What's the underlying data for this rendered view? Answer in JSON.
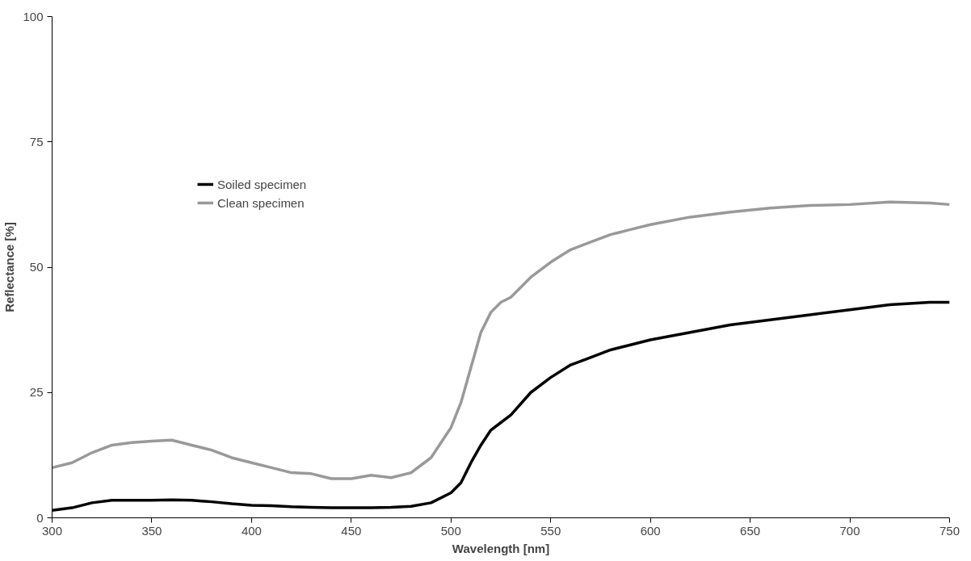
{
  "chart_data": {
    "type": "line",
    "xlabel": "Wavelength [nm]",
    "ylabel": "Reflectance [%]",
    "x": [
      300,
      310,
      320,
      330,
      340,
      350,
      360,
      370,
      380,
      390,
      400,
      410,
      420,
      430,
      440,
      450,
      460,
      470,
      480,
      490,
      500,
      505,
      510,
      515,
      520,
      525,
      530,
      540,
      550,
      560,
      570,
      580,
      590,
      600,
      620,
      640,
      660,
      680,
      700,
      720,
      740,
      750
    ],
    "series": [
      {
        "name": "Soiled specimen",
        "color": "#000000",
        "values": [
          1.5,
          2,
          3,
          3.5,
          3.5,
          3.5,
          3.6,
          3.5,
          3.2,
          2.8,
          2.5,
          2.4,
          2.2,
          2.1,
          2,
          2,
          2,
          2.1,
          2.3,
          3,
          5,
          7,
          11,
          14.5,
          17.5,
          19,
          20.5,
          25,
          28,
          30.5,
          32,
          33.5,
          34.5,
          35.5,
          37,
          38.5,
          39.5,
          40.5,
          41.5,
          42.5,
          43,
          43
        ]
      },
      {
        "name": "Clean specimen",
        "color": "#999999",
        "values": [
          10,
          11,
          13,
          14.5,
          15,
          15.3,
          15.5,
          14.5,
          13.5,
          12,
          11,
          10,
          9,
          8.8,
          7.8,
          7.8,
          8.5,
          8,
          9,
          12,
          18,
          23,
          30,
          37,
          41,
          43,
          44,
          48,
          51,
          53.5,
          55,
          56.5,
          57.5,
          58.5,
          60,
          61,
          61.8,
          62.3,
          62.5,
          63,
          62.8,
          62.5
        ]
      }
    ],
    "xlim": [
      300,
      750
    ],
    "ylim": [
      0,
      100
    ],
    "xticks": [
      300,
      350,
      400,
      450,
      500,
      550,
      600,
      650,
      700,
      750
    ],
    "yticks": [
      0,
      25,
      50,
      75,
      100
    ],
    "grid": false,
    "legend": "top left",
    "marker": "none",
    "line_style": "solid"
  }
}
